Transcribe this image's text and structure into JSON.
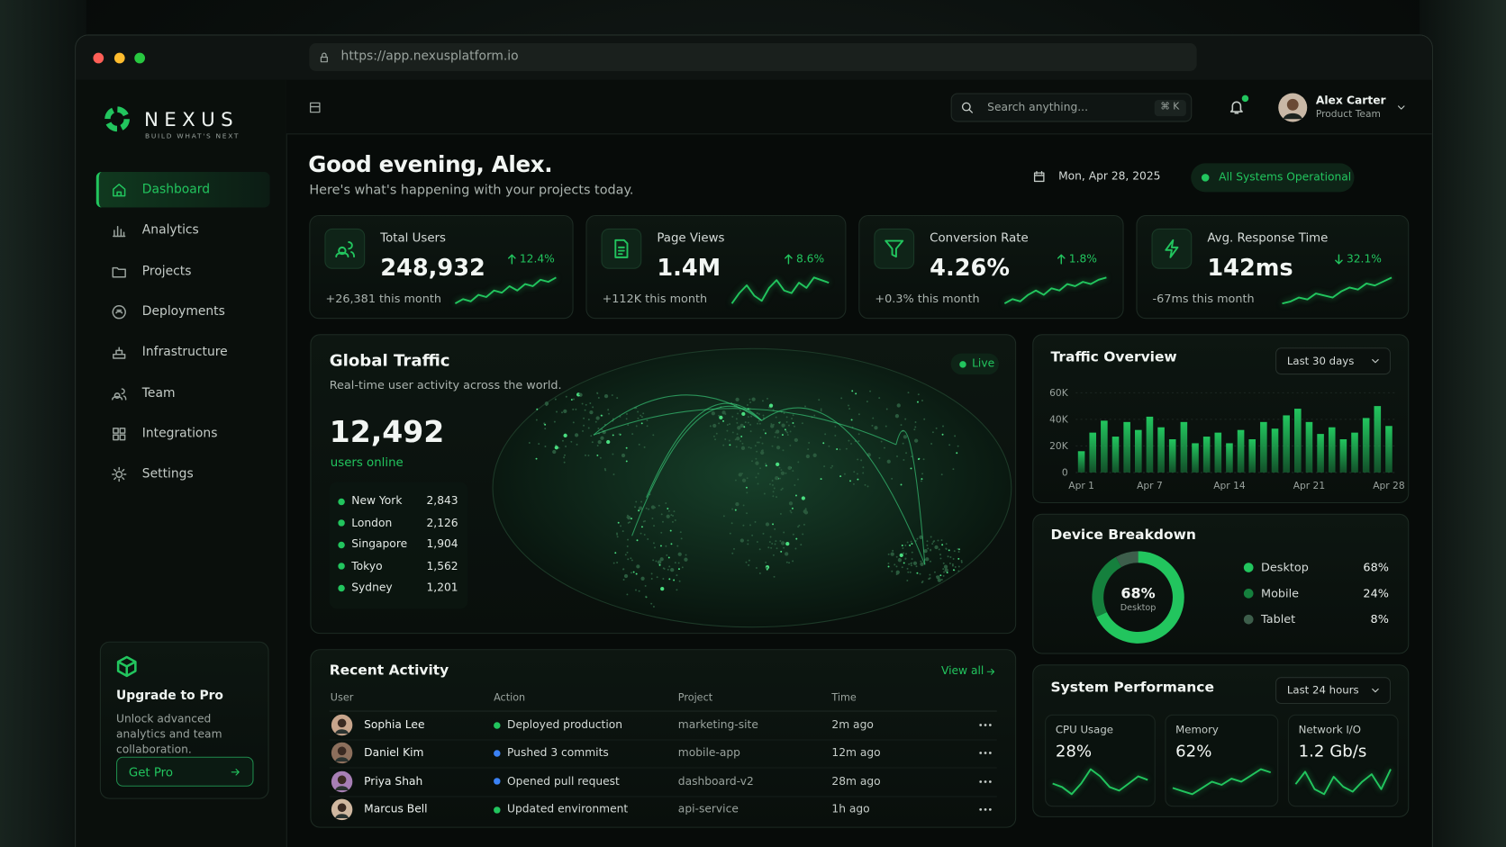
{
  "browser": {
    "url": "https://app.nexusplatform.io"
  },
  "brand": {
    "name": "NEXUS",
    "tagline": "BUILD WHAT'S NEXT"
  },
  "nav": [
    "Dashboard",
    "Analytics",
    "Projects",
    "Deployments",
    "Infrastructure",
    "Team",
    "Integrations",
    "Settings"
  ],
  "upgrade": {
    "title": "Upgrade to Pro",
    "text": "Unlock advanced analytics and team collaboration.",
    "button": "Get Pro"
  },
  "header": {
    "search_placeholder": "Search anything...",
    "shortcut": "⌘ K",
    "user": {
      "name": "Alex Carter",
      "role": "Product Team"
    }
  },
  "greeting": {
    "title": "Good evening, Alex.",
    "subtitle": "Here's what's happening with your projects today.",
    "date": "Mon, Apr 28, 2025",
    "status": "All Systems Operational"
  },
  "kpis": [
    {
      "label": "Total Users",
      "value": "248,932",
      "change": "12.4%",
      "direction": "up",
      "note": "+26,381 this month",
      "trend": [
        3,
        5,
        4,
        7,
        6,
        9,
        8,
        11,
        9,
        12,
        11,
        14,
        13,
        15
      ]
    },
    {
      "label": "Page Views",
      "value": "1.4M",
      "change": "8.6%",
      "direction": "up",
      "note": "+112K this month",
      "trend": [
        2,
        6,
        9,
        5,
        3,
        8,
        11,
        7,
        6,
        10,
        8,
        12,
        11,
        10
      ]
    },
    {
      "label": "Conversion Rate",
      "value": "4.26%",
      "change": "1.8%",
      "direction": "up",
      "note": "+0.3% this month",
      "trend": [
        2,
        4,
        3,
        6,
        8,
        6,
        9,
        8,
        11,
        10,
        12,
        11,
        13,
        14
      ]
    },
    {
      "label": "Avg. Response Time",
      "value": "142ms",
      "change": "32.1%",
      "direction": "down",
      "note": "-67ms this month",
      "trend": [
        2,
        3,
        5,
        4,
        7,
        6,
        5,
        8,
        10,
        9,
        12,
        11,
        13,
        15
      ]
    }
  ],
  "global_traffic": {
    "title": "Global Traffic",
    "subtitle": "Real-time user activity across the world.",
    "badge": "Live",
    "count": "12,492",
    "count_label": "users online",
    "cities": [
      {
        "name": "New York",
        "value": "2,843"
      },
      {
        "name": "London",
        "value": "2,126"
      },
      {
        "name": "Singapore",
        "value": "1,904"
      },
      {
        "name": "Tokyo",
        "value": "1,562"
      },
      {
        "name": "Sydney",
        "value": "1,201"
      }
    ]
  },
  "traffic_overview": {
    "title": "Traffic Overview",
    "range": "Last 30 days",
    "chart": {
      "type": "bar",
      "color": "#22c55e",
      "grid": true,
      "categories": [
        "Apr 1",
        null,
        null,
        null,
        null,
        null,
        "Apr 7",
        null,
        null,
        null,
        null,
        null,
        null,
        "Apr 14",
        null,
        null,
        null,
        null,
        null,
        null,
        "Apr 21",
        null,
        null,
        null,
        null,
        null,
        null,
        "Apr 28"
      ],
      "values": [
        16000,
        30000,
        39000,
        27000,
        38000,
        32000,
        42000,
        34000,
        25000,
        38000,
        22000,
        27000,
        30000,
        22000,
        32000,
        25000,
        38000,
        33000,
        43000,
        48000,
        38000,
        29000,
        34000,
        25000,
        30000,
        41000,
        50000,
        35000
      ],
      "ylim": [
        0,
        60000
      ],
      "yticks": [
        0,
        {
          "value": 20000,
          "label": "20K"
        },
        {
          "value": 40000,
          "label": "40K"
        },
        {
          "value": 60000,
          "label": "60K"
        }
      ]
    }
  },
  "device_breakdown": {
    "title": "Device Breakdown",
    "center_value": "68%",
    "center_label": "Desktop",
    "chart": {
      "type": "pie",
      "categories": [
        "Desktop",
        "Mobile",
        "Tablet"
      ],
      "values": [
        68,
        24,
        8
      ],
      "value_labels": [
        "68%",
        "24%",
        "8%"
      ],
      "colors": [
        "#22c55e",
        "#15803d",
        "#3d5e4b"
      ]
    }
  },
  "recent_activity": {
    "title": "Recent Activity",
    "link": "View all",
    "columns": [
      "User",
      "Action",
      "Project",
      "Time"
    ],
    "rows": [
      {
        "user": "Sophia Lee",
        "action": "Deployed production",
        "project": "marketing-site",
        "time": "2m ago",
        "color": "#22c55e"
      },
      {
        "user": "Daniel Kim",
        "action": "Pushed 3 commits",
        "project": "mobile-app",
        "time": "12m ago",
        "color": "#3b82f6"
      },
      {
        "user": "Priya Shah",
        "action": "Opened pull request",
        "project": "dashboard-v2",
        "time": "28m ago",
        "color": "#3b82f6"
      },
      {
        "user": "Marcus Bell",
        "action": "Updated environment",
        "project": "api-service",
        "time": "1h ago",
        "color": "#22c55e"
      }
    ]
  },
  "system_performance": {
    "title": "System Performance",
    "range": "Last 24 hours",
    "metrics": [
      {
        "label": "CPU Usage",
        "value": "28%",
        "trend": [
          6,
          5,
          3,
          6,
          10,
          8,
          5,
          4,
          6,
          8,
          7
        ]
      },
      {
        "label": "Memory",
        "value": "62%",
        "trend": [
          5,
          4,
          3,
          5,
          7,
          6,
          8,
          7,
          9,
          11,
          10
        ]
      },
      {
        "label": "Network I/O",
        "value": "1.2 Gb/s",
        "trend": [
          6,
          11,
          4,
          2,
          9,
          5,
          3,
          7,
          10,
          4,
          12
        ]
      }
    ]
  }
}
